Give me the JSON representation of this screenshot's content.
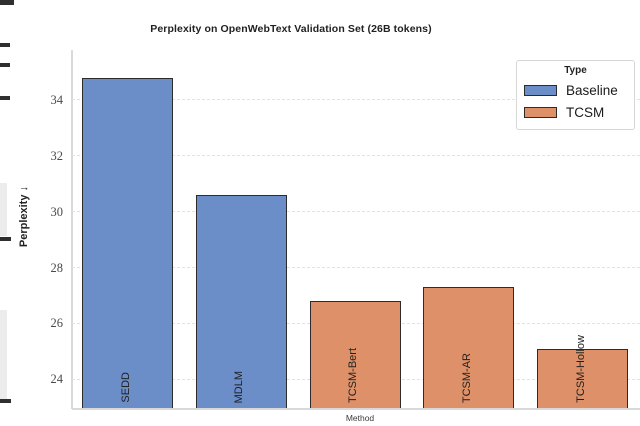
{
  "chart_data": {
    "type": "bar",
    "title": "Perplexity on OpenWebText Validation Set (26B tokens)",
    "xlabel": "Method",
    "ylabel": "Perplexity ↓",
    "categories": [
      "SEDD",
      "MDLM",
      "TCSM-Bert",
      "TCSM-AR",
      "TCSM-Hollow"
    ],
    "values": [
      34.8,
      30.6,
      26.8,
      27.3,
      25.1
    ],
    "bar_types": [
      "Baseline",
      "Baseline",
      "TCSM",
      "TCSM",
      "TCSM"
    ],
    "bar_label_style": "rotated-90-inside-bottom",
    "yticks": [
      24,
      26,
      28,
      30,
      32,
      34
    ],
    "ylim": [
      22.9,
      36.0
    ],
    "grid": "horizontal-dashed",
    "colors": {
      "Baseline": "#6b8ec9",
      "TCSM": "#de9068",
      "bar_edge": "#2b2b2b"
    },
    "legend": {
      "title": "Type",
      "position": "upper-right",
      "entries": [
        {
          "label": "Baseline",
          "color": "#6b8ec9"
        },
        {
          "label": "TCSM",
          "color": "#de9068"
        }
      ]
    }
  }
}
